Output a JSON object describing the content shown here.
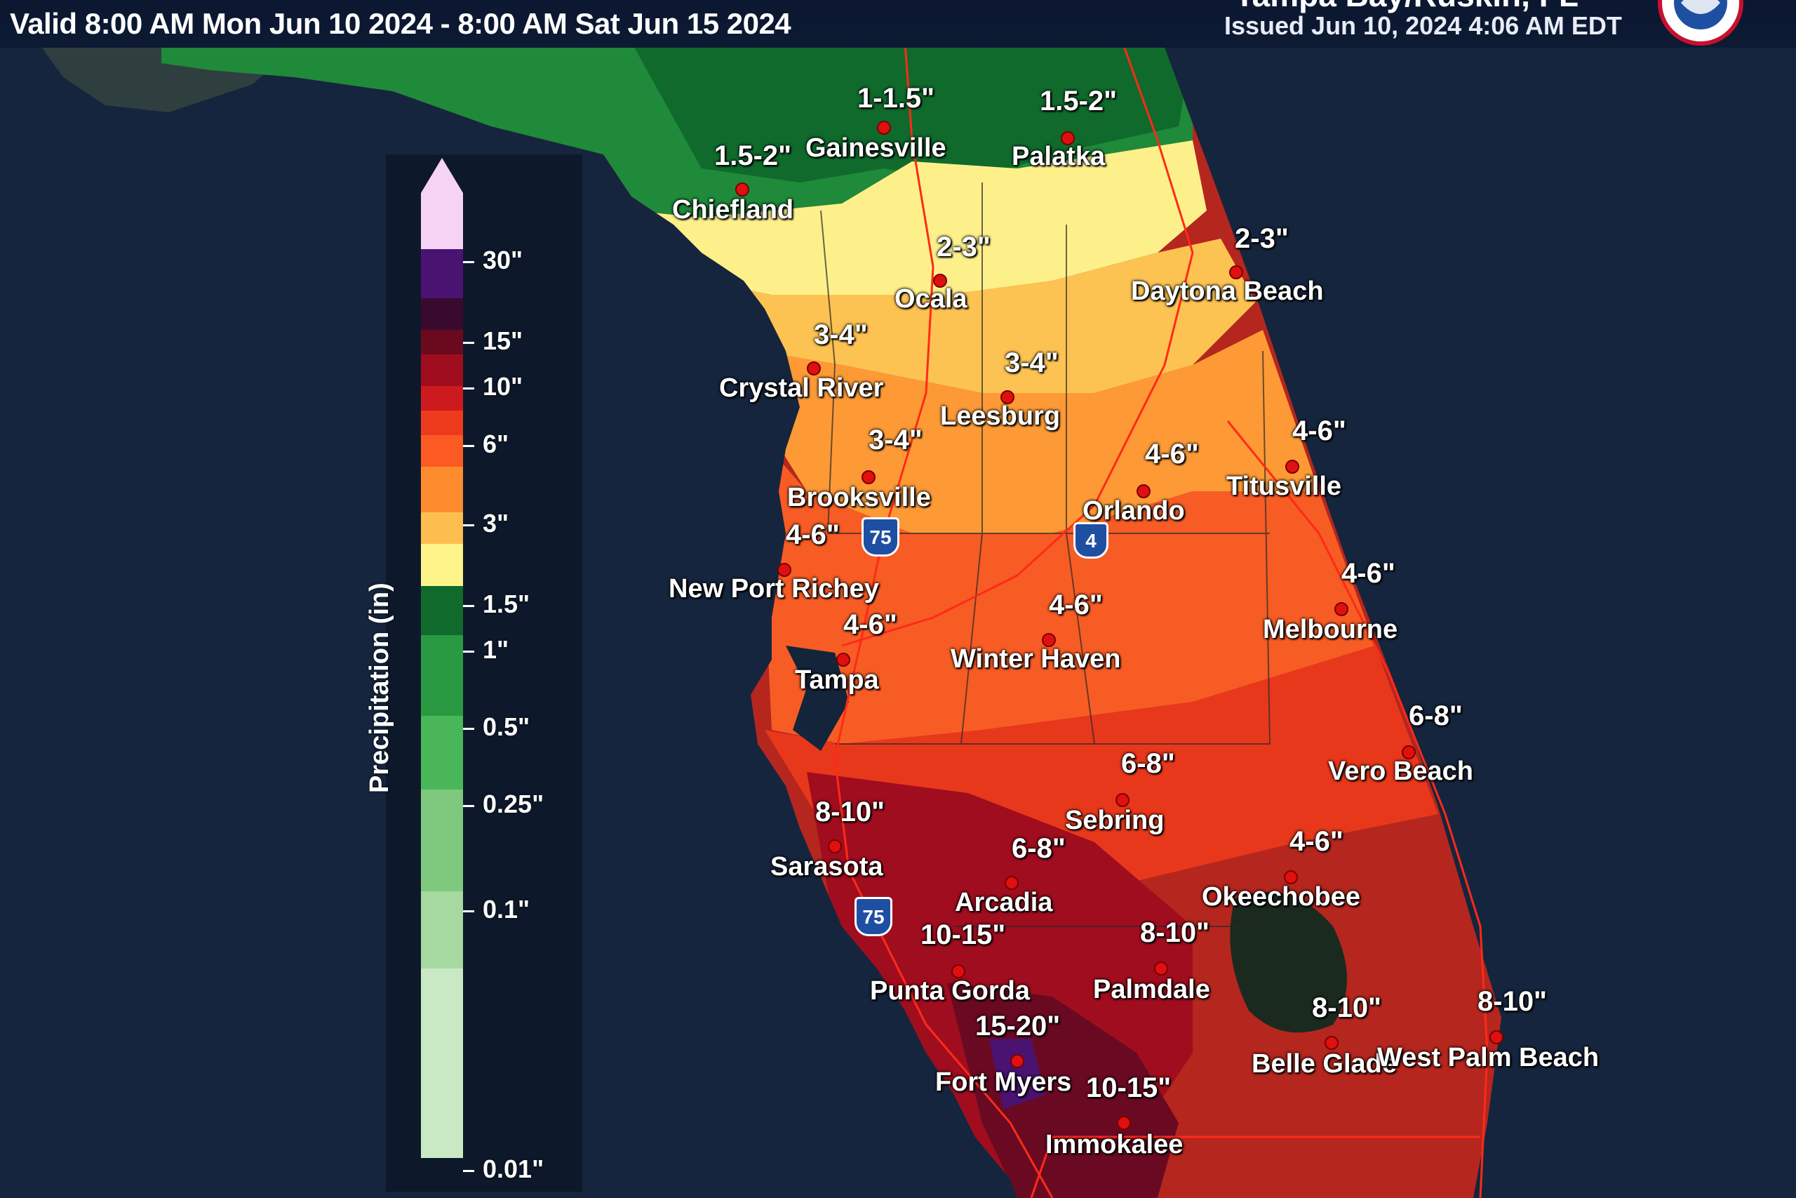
{
  "header": {
    "valid_period": "Valid 8:00 AM Mon Jun 10 2024 - 8:00 AM Sat Jun 15 2024",
    "office": "Tampa Bay/Ruskin, FL",
    "issued": "Issued Jun 10, 2024 4:06 AM EDT"
  },
  "legend": {
    "title": "Precipitation (in)",
    "labels": [
      "30\"",
      "15\"",
      "10\"",
      "6\"",
      "3\"",
      "1.5\"",
      "1\"",
      "0.5\"",
      "0.25\"",
      "0.1\"",
      "0.01\""
    ],
    "colors": [
      "#f6d2f4",
      "#4a1372",
      "#3a0a2e",
      "#6a0a1e",
      "#a00d1e",
      "#cc1a1e",
      "#ee3a1c",
      "#fb5a22",
      "#fc8c2e",
      "#fdbe50",
      "#fdf58a",
      "#0f6a2c",
      "#2a9a42",
      "#4ab65a",
      "#7ec97e",
      "#a5d9a0",
      "#c9e9c4"
    ]
  },
  "shields": [
    "75",
    "4",
    "75"
  ],
  "locations": [
    {
      "city": "Gainesville",
      "amount": "1-1.5\""
    },
    {
      "city": "Palatka",
      "amount": "1.5-2\""
    },
    {
      "city": "Chiefland",
      "amount": "1.5-2\""
    },
    {
      "city": "Ocala",
      "amount": "2-3\""
    },
    {
      "city": "Daytona Beach",
      "amount": "2-3\""
    },
    {
      "city": "Crystal River",
      "amount": "3-4\""
    },
    {
      "city": "Leesburg",
      "amount": "3-4\""
    },
    {
      "city": "Brooksville",
      "amount": "3-4\""
    },
    {
      "city": "Orlando",
      "amount": "4-6\""
    },
    {
      "city": "Titusville",
      "amount": "4-6\""
    },
    {
      "city": "New Port Richey",
      "amount": "4-6\""
    },
    {
      "city": "Melbourne",
      "amount": "4-6\""
    },
    {
      "city": "Tampa",
      "amount": "4-6\""
    },
    {
      "city": "Winter Haven",
      "amount": "4-6\""
    },
    {
      "city": "Vero Beach",
      "amount": "6-8\""
    },
    {
      "city": "Sebring",
      "amount": "6-8\""
    },
    {
      "city": "Sarasota",
      "amount": "8-10\""
    },
    {
      "city": "Arcadia",
      "amount": "6-8\""
    },
    {
      "city": "Okeechobee",
      "amount": "4-6\""
    },
    {
      "city": "Punta Gorda",
      "amount": "10-15\""
    },
    {
      "city": "Palmdale",
      "amount": "8-10\""
    },
    {
      "city": "Belle Glade",
      "amount": "8-10\""
    },
    {
      "city": "West Palm Beach",
      "amount": "8-10\""
    },
    {
      "city": "Fort Myers",
      "amount": "15-20\""
    },
    {
      "city": "Immokalee",
      "amount": "10-15\""
    }
  ]
}
